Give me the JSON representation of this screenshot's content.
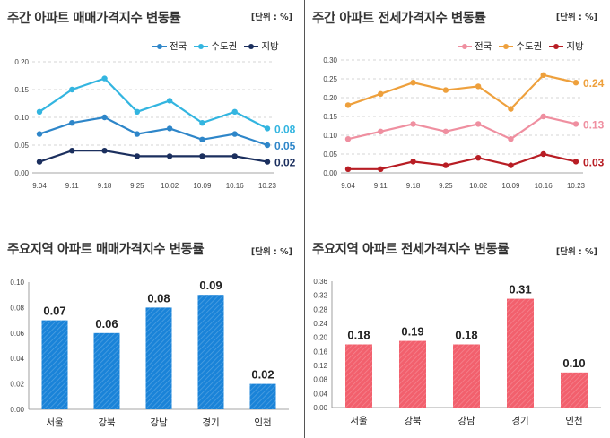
{
  "chart_data": [
    {
      "type": "line",
      "title": "주간 아파트 매매가격지수 변동률",
      "unit": "[단위 : %]",
      "categories": [
        "9.04",
        "9.11",
        "9.18",
        "9.25",
        "10.02",
        "10.09",
        "10.16",
        "10.23"
      ],
      "ylim": [
        0,
        0.2
      ],
      "yticks": [
        "0.00",
        "0.05",
        "0.10",
        "0.15",
        "0.20"
      ],
      "series": [
        {
          "name": "전국",
          "color": "#2e86c9",
          "values": [
            0.07,
            0.09,
            0.1,
            0.07,
            0.08,
            0.06,
            0.07,
            0.05
          ],
          "end_label": "0.05"
        },
        {
          "name": "수도권",
          "color": "#33b5e0",
          "values": [
            0.11,
            0.15,
            0.17,
            0.11,
            0.13,
            0.09,
            0.11,
            0.08
          ],
          "end_label": "0.08"
        },
        {
          "name": "지방",
          "color": "#1b2f5e",
          "values": [
            0.02,
            0.04,
            0.04,
            0.03,
            0.03,
            0.03,
            0.03,
            0.02
          ],
          "end_label": "0.02"
        }
      ]
    },
    {
      "type": "line",
      "title": "주간 아파트 전세가격지수 변동률",
      "unit": "[단위 : %]",
      "categories": [
        "9.04",
        "9.11",
        "9.18",
        "9.25",
        "10.02",
        "10.09",
        "10.16",
        "10.23"
      ],
      "ylim": [
        0,
        0.3
      ],
      "yticks": [
        "0.00",
        "0.05",
        "0.10",
        "0.15",
        "0.20",
        "0.25",
        "0.30"
      ],
      "series": [
        {
          "name": "전국",
          "color": "#ef8fa0",
          "values": [
            0.09,
            0.11,
            0.13,
            0.11,
            0.13,
            0.09,
            0.15,
            0.13
          ],
          "end_label": "0.13"
        },
        {
          "name": "수도권",
          "color": "#eea03c",
          "values": [
            0.18,
            0.21,
            0.24,
            0.22,
            0.23,
            0.17,
            0.26,
            0.24
          ],
          "end_label": "0.24"
        },
        {
          "name": "지방",
          "color": "#b81d24",
          "values": [
            0.01,
            0.01,
            0.03,
            0.02,
            0.04,
            0.02,
            0.05,
            0.03
          ],
          "end_label": "0.03"
        }
      ]
    },
    {
      "type": "bar",
      "title": "주요지역 아파트 매매가격지수 변동률",
      "unit": "[단위 : %]",
      "categories": [
        "서울",
        "강북",
        "강남",
        "경기",
        "인천"
      ],
      "values": [
        0.07,
        0.06,
        0.08,
        0.09,
        0.02
      ],
      "labels": [
        "0.07",
        "0.06",
        "0.08",
        "0.09",
        "0.02"
      ],
      "ylim": [
        0,
        0.1
      ],
      "yticks": [
        "0.00",
        "0.02",
        "0.04",
        "0.06",
        "0.08",
        "0.10"
      ],
      "color": "#1a83d8"
    },
    {
      "type": "bar",
      "title": "주요지역 아파트 전세가격지수 변동률",
      "unit": "[단위 : %]",
      "categories": [
        "서울",
        "강북",
        "강남",
        "경기",
        "인천"
      ],
      "values": [
        0.18,
        0.19,
        0.18,
        0.31,
        0.1
      ],
      "labels": [
        "0.18",
        "0.19",
        "0.18",
        "0.31",
        "0.10"
      ],
      "ylim": [
        0,
        0.36
      ],
      "yticks": [
        "0.00",
        "0.04",
        "0.08",
        "0.12",
        "0.16",
        "0.20",
        "0.24",
        "0.28",
        "0.32",
        "0.36"
      ],
      "color": "#f2606d"
    }
  ]
}
